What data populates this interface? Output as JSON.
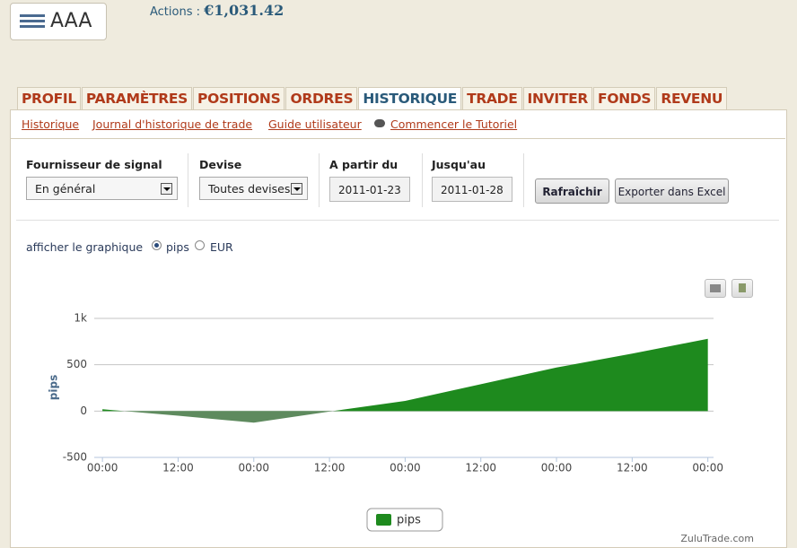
{
  "header": {
    "logo": "AAA",
    "actions_label": "Actions :",
    "actions_value": "€1,031.42"
  },
  "tabs": [
    "PROFIL",
    "PARAMÈTRES",
    "POSITIONS",
    "ORDRES",
    "HISTORIQUE",
    "TRADE",
    "INVITER",
    "FONDS",
    "REVENU"
  ],
  "active_tab": 4,
  "sub_links": [
    "Historique",
    "Journal d'historique de trade",
    "Guide utilisateur",
    "Commencer le Tutoriel"
  ],
  "filters": [
    {
      "label": "Fournisseur de signal",
      "value": "En général"
    },
    {
      "label": "Devise",
      "value": "Toutes devises"
    },
    {
      "label": "A partir du",
      "value": "2011-01-23"
    },
    {
      "label": "Jusqu'au",
      "value": "2011-01-28"
    }
  ],
  "buttons": [
    "Rafraîchir",
    "Exporter dans Excel"
  ],
  "chart_toggle": {
    "label": "afficher le graphique",
    "options": [
      "pips",
      "EUR"
    ],
    "selected": 0
  },
  "chart_data": {
    "type": "area",
    "y_label": "pips",
    "x": [
      0,
      12,
      24,
      36,
      48,
      60,
      72,
      84,
      96
    ],
    "series": [
      {
        "name": "pips",
        "color": "#1e8a1e",
        "negative_color": "#5e8a5e",
        "values": [
          20,
          -50,
          -125,
          -5,
          110,
          290,
          470,
          620,
          780
        ]
      }
    ],
    "xlim": [
      -1.3,
      96.9
    ],
    "xticks": [
      {
        "value": 0,
        "label": "00:00"
      },
      {
        "value": 12,
        "label": "12:00"
      },
      {
        "value": 24,
        "label": "00:00"
      },
      {
        "value": 36,
        "label": "12:00"
      },
      {
        "value": 48,
        "label": "00:00"
      },
      {
        "value": 60,
        "label": "12:00"
      },
      {
        "value": 72,
        "label": "00:00"
      },
      {
        "value": 84,
        "label": "12:00"
      },
      {
        "value": 96,
        "label": "00:00"
      }
    ],
    "ylim": [
      -500,
      1000
    ],
    "yticks": [
      -500,
      0,
      500,
      {
        "value": 1000,
        "label": "1k"
      }
    ],
    "grid": true,
    "legend": "bottom"
  },
  "footer": "ZuluTrade.com"
}
